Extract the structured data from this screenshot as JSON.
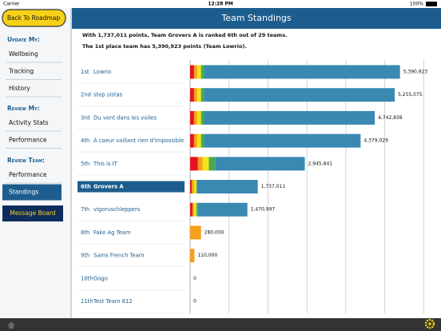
{
  "status_bar": {
    "carrier": "Carrier",
    "time": "12:28 PM",
    "battery": "100%"
  },
  "sidebar": {
    "back_button": "Back To Roadmap",
    "sections": [
      {
        "title": "Update My:",
        "items": [
          "Wellbeing",
          "Tracking",
          "History"
        ]
      },
      {
        "title": "Review My:",
        "items": [
          "Activity Stats",
          "Performance"
        ]
      },
      {
        "title": "Review Team:",
        "items": [
          "Performance",
          "Standings"
        ]
      }
    ],
    "message_board": "Message Board"
  },
  "header": {
    "title": "Team Standings"
  },
  "summary": [
    "With 1,737,011 points, Team Grovers A is ranked 6th out of 29 teams.",
    "The 1st place team has 5,390,923 points (Team Lowrio)."
  ],
  "chart_data": {
    "type": "bar",
    "orientation": "horizontal",
    "stacked": true,
    "ranks": [
      "1st",
      "2nd",
      "3rd",
      "4th",
      "5th",
      "6th",
      "7th",
      "8th",
      "9th",
      "10th",
      "11th"
    ],
    "categories": [
      "Lowrio",
      "step sistas",
      "Du vent dans les voiles",
      "À coeur vaillant rien d'impossible",
      "This is IT",
      "Grovers A",
      "vigoruschleppers",
      "Fake Ag Team",
      "Sams French Team",
      "Gogo",
      "Test Team 812"
    ],
    "series": [
      {
        "color": "#e3141d",
        "values": [
          100000,
          100000,
          100000,
          100000,
          200000,
          40000,
          60000,
          0,
          0,
          0,
          0
        ]
      },
      {
        "color": "#f6a01c",
        "values": [
          80000,
          80000,
          80000,
          80000,
          120000,
          60000,
          40000,
          280000,
          110000,
          0,
          0
        ]
      },
      {
        "color": "#f3e318",
        "values": [
          100000,
          100000,
          100000,
          100000,
          160000,
          60000,
          60000,
          0,
          0,
          0,
          0
        ]
      },
      {
        "color": "#4aa94e",
        "values": [
          80000,
          80000,
          80000,
          80000,
          160000,
          20000,
          40000,
          0,
          0,
          0,
          0
        ]
      },
      {
        "color": "#3a89b3",
        "values": [
          5030923,
          4895075,
          4382838,
          4019029,
          2305841,
          1557011,
          1270997,
          0,
          0,
          0,
          0
        ]
      }
    ],
    "totals": [
      5390923,
      5255075,
      4742838,
      4379029,
      2945841,
      1737011,
      1470997,
      280000,
      110000,
      0,
      0
    ],
    "total_labels": [
      "5,390,923",
      "5,255,075",
      "4,742,838",
      "4,379,029",
      "2,945,841",
      "1,737,011",
      "1,470,997",
      "280,000",
      "110,000",
      "0",
      "0"
    ],
    "xlim": [
      0,
      6300000
    ],
    "xticks": [
      0,
      1000000,
      2000000,
      3000000,
      4000000,
      5000000,
      6000000
    ],
    "grid": true
  }
}
